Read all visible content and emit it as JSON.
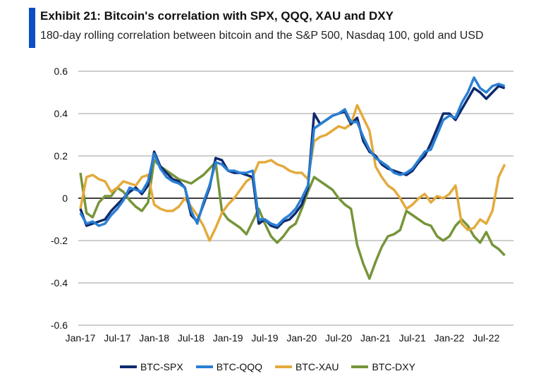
{
  "header": {
    "title": "Exhibit 21: Bitcoin's correlation with SPX, QQQ, XAU and DXY",
    "subtitle": "180-day rolling correlation between bitcoin and the S&P 500, Nasdaq 100, gold and USD"
  },
  "chart_data": {
    "type": "line",
    "title": "Exhibit 21: Bitcoin's correlation with SPX, QQQ, XAU and DXY",
    "subtitle": "180-day rolling correlation between bitcoin and the S&P 500, Nasdaq 100, gold and USD",
    "xlabel": "",
    "ylabel": "",
    "ylim": [
      -0.6,
      0.6
    ],
    "yticks": [
      "0.6",
      "0.4",
      "0.2",
      "0",
      "-0.2",
      "-0.4",
      "-0.6"
    ],
    "yticks_values": [
      0.6,
      0.4,
      0.2,
      0,
      -0.2,
      -0.4,
      -0.6
    ],
    "xticks": [
      "Jan-17",
      "Jul-17",
      "Jan-18",
      "Jul-18",
      "Jan-19",
      "Jul-19",
      "Jan-20",
      "Jul-20",
      "Jan-21",
      "Jul-21",
      "Jan-22",
      "Jul-22"
    ],
    "grid": true,
    "legend": "bottom",
    "x": [
      "2017-01",
      "2017-02",
      "2017-03",
      "2017-04",
      "2017-05",
      "2017-06",
      "2017-07",
      "2017-08",
      "2017-09",
      "2017-10",
      "2017-11",
      "2017-12",
      "2018-01",
      "2018-02",
      "2018-03",
      "2018-04",
      "2018-05",
      "2018-06",
      "2018-07",
      "2018-08",
      "2018-09",
      "2018-10",
      "2018-11",
      "2018-12",
      "2019-01",
      "2019-02",
      "2019-03",
      "2019-04",
      "2019-05",
      "2019-06",
      "2019-07",
      "2019-08",
      "2019-09",
      "2019-10",
      "2019-11",
      "2019-12",
      "2020-01",
      "2020-02",
      "2020-03",
      "2020-04",
      "2020-05",
      "2020-06",
      "2020-07",
      "2020-08",
      "2020-09",
      "2020-10",
      "2020-11",
      "2020-12",
      "2021-01",
      "2021-02",
      "2021-03",
      "2021-04",
      "2021-05",
      "2021-06",
      "2021-07",
      "2021-08",
      "2021-09",
      "2021-10",
      "2021-11",
      "2021-12",
      "2022-01",
      "2022-02",
      "2022-03",
      "2022-04",
      "2022-05",
      "2022-06",
      "2022-07",
      "2022-08",
      "2022-09",
      "2022-10"
    ],
    "series": [
      {
        "name": "BTC-SPX",
        "color": "#0d2a6e",
        "values": [
          -0.05,
          -0.13,
          -0.12,
          -0.11,
          -0.1,
          -0.06,
          -0.03,
          0.0,
          0.03,
          0.05,
          0.02,
          0.06,
          0.22,
          0.15,
          0.12,
          0.09,
          0.08,
          0.05,
          -0.08,
          -0.11,
          -0.03,
          0.05,
          0.19,
          0.18,
          0.13,
          0.12,
          0.12,
          0.11,
          0.1,
          -0.12,
          -0.1,
          -0.13,
          -0.14,
          -0.11,
          -0.1,
          -0.07,
          -0.03,
          0.05,
          0.4,
          0.35,
          0.37,
          0.39,
          0.4,
          0.41,
          0.35,
          0.38,
          0.27,
          0.22,
          0.2,
          0.16,
          0.14,
          0.13,
          0.12,
          0.11,
          0.13,
          0.17,
          0.2,
          0.26,
          0.33,
          0.4,
          0.4,
          0.37,
          0.42,
          0.47,
          0.52,
          0.5,
          0.47,
          0.5,
          0.53,
          0.52
        ]
      },
      {
        "name": "BTC-QQQ",
        "color": "#2a7fd4",
        "values": [
          -0.07,
          -0.12,
          -0.11,
          -0.13,
          -0.12,
          -0.08,
          -0.05,
          -0.01,
          0.05,
          0.04,
          0.03,
          0.08,
          0.21,
          0.14,
          0.1,
          0.08,
          0.07,
          0.05,
          -0.06,
          -0.12,
          -0.02,
          0.06,
          0.17,
          0.16,
          0.13,
          0.13,
          0.12,
          0.12,
          0.13,
          -0.1,
          -0.1,
          -0.12,
          -0.13,
          -0.1,
          -0.08,
          -0.05,
          0.0,
          0.06,
          0.33,
          0.35,
          0.37,
          0.39,
          0.4,
          0.42,
          0.36,
          0.36,
          0.29,
          0.23,
          0.19,
          0.17,
          0.15,
          0.12,
          0.11,
          0.12,
          0.14,
          0.18,
          0.22,
          0.23,
          0.3,
          0.37,
          0.39,
          0.38,
          0.45,
          0.5,
          0.57,
          0.52,
          0.5,
          0.53,
          0.54,
          0.53
        ]
      },
      {
        "name": "BTC-XAU",
        "color": "#e3aa3c",
        "values": [
          -0.05,
          0.1,
          0.11,
          0.09,
          0.08,
          0.03,
          0.05,
          0.08,
          0.07,
          0.06,
          0.1,
          0.11,
          -0.03,
          -0.05,
          -0.06,
          -0.06,
          -0.04,
          0.0,
          -0.04,
          -0.08,
          -0.13,
          -0.2,
          -0.14,
          -0.07,
          -0.03,
          0.0,
          0.04,
          0.08,
          0.1,
          0.17,
          0.17,
          0.18,
          0.16,
          0.15,
          0.13,
          0.12,
          0.12,
          0.09,
          0.27,
          0.29,
          0.3,
          0.32,
          0.34,
          0.33,
          0.35,
          0.44,
          0.38,
          0.32,
          0.15,
          0.1,
          0.06,
          0.04,
          0.0,
          -0.05,
          -0.03,
          0.0,
          0.02,
          -0.02,
          0.01,
          0.0,
          0.02,
          0.06,
          -0.12,
          -0.15,
          -0.14,
          -0.1,
          -0.12,
          -0.06,
          0.1,
          0.16
        ]
      },
      {
        "name": "BTC-DXY",
        "color": "#76953a",
        "values": [
          0.12,
          -0.07,
          -0.09,
          -0.02,
          0.01,
          0.01,
          0.05,
          0.03,
          -0.01,
          -0.04,
          -0.06,
          -0.02,
          0.18,
          0.15,
          0.13,
          0.11,
          0.09,
          0.08,
          0.07,
          0.09,
          0.11,
          0.14,
          0.17,
          -0.06,
          -0.1,
          -0.12,
          -0.14,
          -0.17,
          -0.11,
          -0.05,
          -0.12,
          -0.18,
          -0.21,
          -0.18,
          -0.14,
          -0.12,
          -0.05,
          0.03,
          0.1,
          0.08,
          0.06,
          0.04,
          0.0,
          -0.03,
          -0.05,
          -0.22,
          -0.31,
          -0.38,
          -0.3,
          -0.23,
          -0.18,
          -0.17,
          -0.15,
          -0.06,
          -0.08,
          -0.1,
          -0.12,
          -0.13,
          -0.18,
          -0.2,
          -0.18,
          -0.13,
          -0.1,
          -0.13,
          -0.18,
          -0.21,
          -0.16,
          -0.22,
          -0.24,
          -0.27
        ]
      }
    ]
  }
}
